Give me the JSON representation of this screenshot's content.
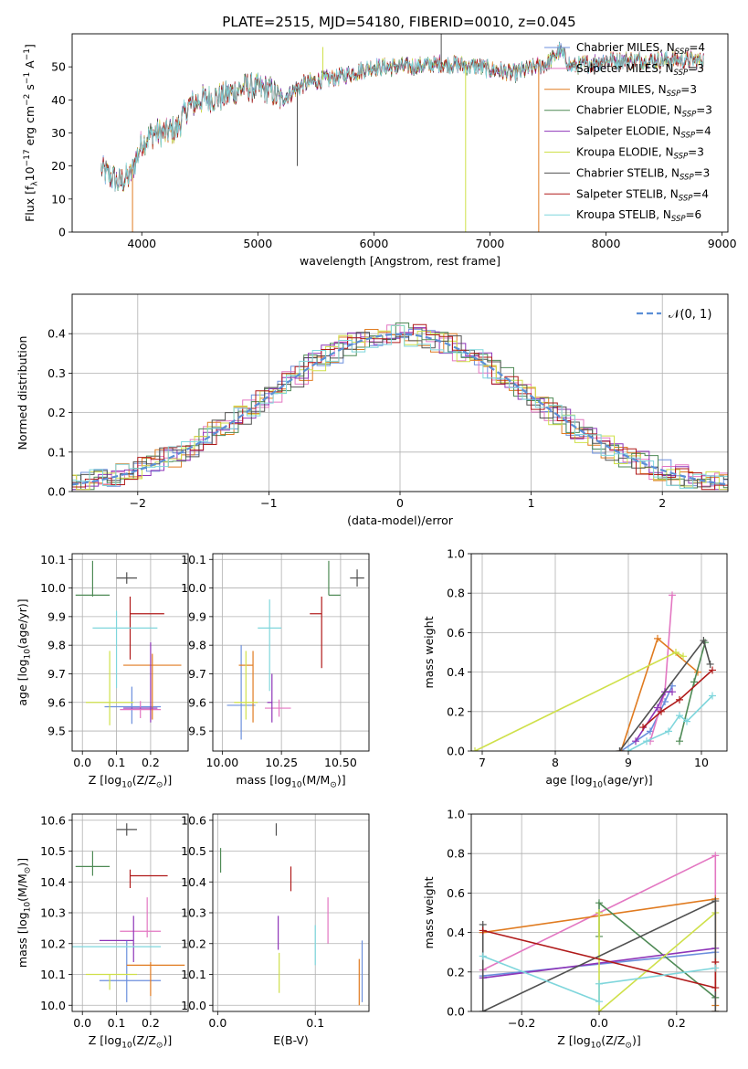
{
  "figure_title": "PLATE=2515, MJD=54180, FIBERID=0010, z=0.045",
  "colors": {
    "Chabrier MILES": "#6b8fdd",
    "Salpeter MILES": "#e377c2",
    "Kroupa MILES": "#e07b20",
    "Chabrier ELODIE": "#4e8a55",
    "Salpeter ELODIE": "#8e35b8",
    "Kroupa ELODIE": "#cfe04a",
    "Chabrier STELIB": "#505050",
    "Salpeter STELIB": "#b01a1a",
    "Kroupa STELIB": "#7fd6dc"
  },
  "chart_data": [
    {
      "id": "spectrum",
      "type": "line",
      "xlabel": "wavelength [Angstrom, rest frame]",
      "ylabel": "Flux [f_λ10^-17 erg cm^-2 s^-1 A^-1]",
      "xlim": [
        3400,
        9050
      ],
      "ylim": [
        0,
        60
      ],
      "xticks": [
        4000,
        5000,
        6000,
        7000,
        8000,
        9000
      ],
      "yticks": [
        0,
        10,
        20,
        30,
        40,
        50
      ],
      "x_range_data": [
        3650,
        8840
      ],
      "legend_position": "top-right",
      "legend": [
        {
          "label": "Chabrier MILES, N",
          "sub": "SSP",
          "suffix": "=4"
        },
        {
          "label": "Salpeter MILES, N",
          "sub": "SSP",
          "suffix": "=3"
        },
        {
          "label": "Kroupa MILES, N",
          "sub": "SSP",
          "suffix": "=3"
        },
        {
          "label": "Chabrier ELODIE, N",
          "sub": "SSP",
          "suffix": "=3"
        },
        {
          "label": "Salpeter ELODIE, N",
          "sub": "SSP",
          "suffix": "=4"
        },
        {
          "label": "Kroupa ELODIE, N",
          "sub": "SSP",
          "suffix": "=3"
        },
        {
          "label": "Chabrier STELIB, N",
          "sub": "SSP",
          "suffix": "=3"
        },
        {
          "label": "Salpeter STELIB, N",
          "sub": "SSP",
          "suffix": "=4"
        },
        {
          "label": "Kroupa STELIB, N",
          "sub": "SSP",
          "suffix": "=6"
        }
      ],
      "continuum_knots": [
        [
          3650,
          19
        ],
        [
          3800,
          15
        ],
        [
          3900,
          17
        ],
        [
          4000,
          27
        ],
        [
          4100,
          30
        ],
        [
          4200,
          30
        ],
        [
          4300,
          31
        ],
        [
          4400,
          38
        ],
        [
          4500,
          40
        ],
        [
          4700,
          41
        ],
        [
          4900,
          44
        ],
        [
          5100,
          43
        ],
        [
          5200,
          40
        ],
        [
          5400,
          45
        ],
        [
          5700,
          47
        ],
        [
          6000,
          50
        ],
        [
          6300,
          50
        ],
        [
          6600,
          51
        ],
        [
          6900,
          50
        ],
        [
          7200,
          48
        ],
        [
          7500,
          51
        ],
        [
          7600,
          55
        ],
        [
          7700,
          50
        ],
        [
          8000,
          52
        ],
        [
          8400,
          52
        ],
        [
          8840,
          52
        ]
      ],
      "spikes": [
        {
          "x": 3920,
          "y": 0
        },
        {
          "x": 5340,
          "y": 20
        },
        {
          "x": 5560,
          "y": 56
        },
        {
          "x": 6580,
          "y": 60
        },
        {
          "x": 6790,
          "y": 0
        },
        {
          "x": 7420,
          "y": 0
        }
      ]
    },
    {
      "id": "residuals",
      "type": "histogram",
      "xlabel": "(data-model)/error",
      "ylabel": "Normed distribution",
      "xlim": [
        -2.5,
        2.5
      ],
      "ylim": [
        0,
        0.5
      ],
      "xticks": [
        -2,
        -1,
        0,
        1,
        2
      ],
      "yticks": [
        0.0,
        0.1,
        0.2,
        0.3,
        0.4
      ],
      "bin_width": 0.1,
      "grid": true,
      "legend_position": "top-right",
      "legend": [
        {
          "label": "𝒩(0, 1)",
          "style": "dashed",
          "color": "#5b8fd6"
        }
      ]
    },
    {
      "id": "age_vs_Z",
      "type": "errorbar",
      "xlabel": "Z [log10(Z/Z⊙)]",
      "ylabel": "age [log10(age/yr)]",
      "xlim": [
        -0.03,
        0.31
      ],
      "ylim": [
        9.43,
        10.12
      ],
      "xticks": [
        0.0,
        0.1,
        0.2
      ],
      "yticks": [
        9.5,
        9.6,
        9.7,
        9.8,
        9.9,
        10.0,
        10.1
      ],
      "grid": true,
      "points": [
        {
          "model": "Chabrier MILES",
          "x": 0.145,
          "y": 9.585,
          "xerr": [
            0.08,
            0.085
          ],
          "yerr": [
            0.06,
            0.07
          ]
        },
        {
          "model": "Salpeter MILES",
          "x": 0.17,
          "y": 9.575,
          "xerr": [
            0.06,
            0.06
          ],
          "yerr": [
            0.03,
            0.03
          ]
        },
        {
          "model": "Kroupa MILES",
          "x": 0.205,
          "y": 9.73,
          "xerr": [
            0.085,
            0.085
          ],
          "yerr": [
            0.19,
            0.04
          ]
        },
        {
          "model": "Chabrier ELODIE",
          "x": 0.03,
          "y": 9.975,
          "xerr": [
            0.05,
            0.05
          ],
          "yerr": [
            0.005,
            0.12
          ]
        },
        {
          "model": "Salpeter ELODIE",
          "x": 0.2,
          "y": 9.58,
          "xerr": [
            0.08,
            0.02
          ],
          "yerr": [
            0.05,
            0.23
          ]
        },
        {
          "model": "Kroupa ELODIE",
          "x": 0.08,
          "y": 9.6,
          "xerr": [
            0.07,
            0.07
          ],
          "yerr": [
            0.08,
            0.18
          ]
        },
        {
          "model": "Chabrier STELIB",
          "x": 0.13,
          "y": 10.035,
          "xerr": [
            0.03,
            0.03
          ],
          "yerr": [
            0.02,
            0.02
          ]
        },
        {
          "model": "Salpeter STELIB",
          "x": 0.14,
          "y": 9.91,
          "xerr": [
            0.0,
            0.1
          ],
          "yerr": [
            0.16,
            0.06
          ]
        },
        {
          "model": "Kroupa STELIB",
          "x": 0.1,
          "y": 9.86,
          "xerr": [
            0.07,
            0.12
          ],
          "yerr": [
            0.21,
            0.06
          ]
        }
      ]
    },
    {
      "id": "age_vs_mass",
      "type": "errorbar",
      "xlabel": "mass [log10(M/M⊙)]",
      "ylabel": "",
      "xlim": [
        9.96,
        10.62
      ],
      "ylim": [
        9.43,
        10.12
      ],
      "xticks": [
        10.0,
        10.25,
        10.5
      ],
      "yticks": [
        9.5,
        9.6,
        9.7,
        9.8,
        9.9,
        10.0,
        10.1
      ],
      "grid": true,
      "points": [
        {
          "model": "Chabrier MILES",
          "x": 10.08,
          "y": 9.59,
          "xerr": [
            0.06,
            0.06
          ],
          "yerr": [
            0.12,
            0.21
          ]
        },
        {
          "model": "Salpeter MILES",
          "x": 10.24,
          "y": 9.58,
          "xerr": [
            0.06,
            0.05
          ],
          "yerr": [
            0.03,
            0.03
          ]
        },
        {
          "model": "Kroupa MILES",
          "x": 10.13,
          "y": 9.73,
          "xerr": [
            0.06,
            0.0
          ],
          "yerr": [
            0.2,
            0.05
          ]
        },
        {
          "model": "Chabrier ELODIE",
          "x": 10.45,
          "y": 9.975,
          "xerr": [
            0.0,
            0.05
          ],
          "yerr": [
            0.0,
            0.12
          ]
        },
        {
          "model": "Salpeter ELODIE",
          "x": 10.21,
          "y": 9.6,
          "xerr": [
            0.02,
            0.0
          ],
          "yerr": [
            0.07,
            0.1
          ]
        },
        {
          "model": "Kroupa ELODIE",
          "x": 10.1,
          "y": 9.6,
          "xerr": [
            0.05,
            0.05
          ],
          "yerr": [
            0.06,
            0.18
          ]
        },
        {
          "model": "Chabrier STELIB",
          "x": 10.57,
          "y": 10.035,
          "xerr": [
            0.03,
            0.03
          ],
          "yerr": [
            0.03,
            0.03
          ]
        },
        {
          "model": "Salpeter STELIB",
          "x": 10.42,
          "y": 9.91,
          "xerr": [
            0.05,
            0.0
          ],
          "yerr": [
            0.19,
            0.06
          ]
        },
        {
          "model": "Kroupa STELIB",
          "x": 10.2,
          "y": 9.86,
          "xerr": [
            0.05,
            0.05
          ],
          "yerr": [
            0.22,
            0.1
          ]
        }
      ]
    },
    {
      "id": "massweight_vs_age",
      "type": "line",
      "xlabel": "age [log10(age/yr)]",
      "ylabel": "mass weight",
      "xlim": [
        6.85,
        10.35
      ],
      "ylim": [
        0,
        1
      ],
      "xticks": [
        7,
        8,
        9,
        10
      ],
      "yticks": [
        0.0,
        0.2,
        0.4,
        0.6,
        0.8,
        1.0
      ],
      "grid": true,
      "series": [
        {
          "model": "Chabrier MILES",
          "x": [
            8.9,
            9.3,
            9.5,
            9.6
          ],
          "y": [
            0.0,
            0.1,
            0.25,
            0.33
          ]
        },
        {
          "model": "Salpeter MILES",
          "x": [
            9.3,
            9.5,
            9.6
          ],
          "y": [
            0.05,
            0.3,
            0.79
          ]
        },
        {
          "model": "Kroupa MILES",
          "x": [
            8.9,
            9.4,
            9.95
          ],
          "y": [
            0.0,
            0.57,
            0.4
          ]
        },
        {
          "model": "Chabrier ELODIE",
          "x": [
            9.7,
            9.9,
            10.05
          ],
          "y": [
            0.05,
            0.35,
            0.55
          ]
        },
        {
          "model": "Salpeter ELODIE",
          "x": [
            9.1,
            9.4,
            9.5,
            9.6
          ],
          "y": [
            0.05,
            0.22,
            0.3,
            0.3
          ]
        },
        {
          "model": "Kroupa ELODIE",
          "x": [
            6.9,
            9.65,
            9.75
          ],
          "y": [
            0.0,
            0.5,
            0.48
          ]
        },
        {
          "model": "Chabrier STELIB",
          "x": [
            8.88,
            10.03,
            10.12
          ],
          "y": [
            0.0,
            0.56,
            0.44
          ]
        },
        {
          "model": "Salpeter STELIB",
          "x": [
            9.2,
            9.45,
            9.7,
            10.15
          ],
          "y": [
            0.12,
            0.2,
            0.26,
            0.41
          ]
        },
        {
          "model": "Kroupa STELIB",
          "x": [
            9.0,
            9.25,
            9.55,
            9.7,
            9.8,
            10.15
          ],
          "y": [
            0.0,
            0.05,
            0.1,
            0.18,
            0.15,
            0.28
          ]
        }
      ]
    },
    {
      "id": "mass_vs_Z",
      "type": "errorbar",
      "xlabel": "Z [log10(Z/Z⊙)]",
      "ylabel": "mass [log10(M/M⊙)]",
      "xlim": [
        -0.03,
        0.31
      ],
      "ylim": [
        9.98,
        10.62
      ],
      "xticks": [
        0.0,
        0.1,
        0.2
      ],
      "yticks": [
        10.0,
        10.1,
        10.2,
        10.3,
        10.4,
        10.5,
        10.6
      ],
      "grid": true,
      "points": [
        {
          "model": "Chabrier MILES",
          "x": 0.13,
          "y": 10.08,
          "xerr": [
            0.08,
            0.1
          ],
          "yerr": [
            0.07,
            0.13
          ]
        },
        {
          "model": "Salpeter MILES",
          "x": 0.19,
          "y": 10.24,
          "xerr": [
            0.08,
            0.04
          ],
          "yerr": [
            0.02,
            0.11
          ]
        },
        {
          "model": "Kroupa MILES",
          "x": 0.2,
          "y": 10.13,
          "xerr": [
            0.07,
            0.1
          ],
          "yerr": [
            0.1,
            0.01
          ]
        },
        {
          "model": "Chabrier ELODIE",
          "x": 0.03,
          "y": 10.45,
          "xerr": [
            0.05,
            0.05
          ],
          "yerr": [
            0.03,
            0.05
          ]
        },
        {
          "model": "Salpeter ELODIE",
          "x": 0.15,
          "y": 10.21,
          "xerr": [
            0.1,
            0.0
          ],
          "yerr": [
            0.07,
            0.08
          ]
        },
        {
          "model": "Kroupa ELODIE",
          "x": 0.08,
          "y": 10.1,
          "xerr": [
            0.07,
            0.08
          ],
          "yerr": [
            0.05,
            0.0
          ]
        },
        {
          "model": "Chabrier STELIB",
          "x": 0.13,
          "y": 10.57,
          "xerr": [
            0.03,
            0.03
          ],
          "yerr": [
            0.02,
            0.02
          ]
        },
        {
          "model": "Salpeter STELIB",
          "x": 0.14,
          "y": 10.42,
          "xerr": [
            0.0,
            0.11
          ],
          "yerr": [
            0.04,
            0.02
          ]
        },
        {
          "model": "Kroupa STELIB",
          "x": 0.1,
          "y": 10.19,
          "xerr": [
            0.13,
            0.13
          ],
          "yerr": [
            0.0,
            0.0
          ]
        }
      ]
    },
    {
      "id": "mass_vs_ebv",
      "type": "errorbar",
      "xlabel": "E(B-V)",
      "ylabel": "",
      "xlim": [
        -0.005,
        0.155
      ],
      "ylim": [
        9.98,
        10.62
      ],
      "xticks": [
        0.0,
        0.1
      ],
      "yticks": [
        10.0,
        10.1,
        10.2,
        10.3,
        10.4,
        10.5,
        10.6
      ],
      "grid": true,
      "points": [
        {
          "model": "Chabrier MILES",
          "x": 0.148,
          "y": 10.14,
          "xerr": [
            0,
            0
          ],
          "yerr": [
            0.13,
            0.07
          ]
        },
        {
          "model": "Salpeter MILES",
          "x": 0.113,
          "y": 10.24,
          "xerr": [
            0,
            0
          ],
          "yerr": [
            0.04,
            0.11
          ]
        },
        {
          "model": "Kroupa MILES",
          "x": 0.145,
          "y": 10.09,
          "xerr": [
            0,
            0
          ],
          "yerr": [
            0.09,
            0.06
          ]
        },
        {
          "model": "Chabrier ELODIE",
          "x": 0.003,
          "y": 10.47,
          "xerr": [
            0,
            0
          ],
          "yerr": [
            0.04,
            0.04
          ]
        },
        {
          "model": "Salpeter ELODIE",
          "x": 0.062,
          "y": 10.23,
          "xerr": [
            0,
            0
          ],
          "yerr": [
            0.05,
            0.06
          ]
        },
        {
          "model": "Kroupa ELODIE",
          "x": 0.063,
          "y": 10.1,
          "xerr": [
            0,
            0
          ],
          "yerr": [
            0.06,
            0.07
          ]
        },
        {
          "model": "Chabrier STELIB",
          "x": 0.06,
          "y": 10.57,
          "xerr": [
            0,
            0
          ],
          "yerr": [
            0.02,
            0.02
          ]
        },
        {
          "model": "Salpeter STELIB",
          "x": 0.075,
          "y": 10.41,
          "xerr": [
            0,
            0
          ],
          "yerr": [
            0.04,
            0.04
          ]
        },
        {
          "model": "Kroupa STELIB",
          "x": 0.1,
          "y": 10.2,
          "xerr": [
            0,
            0
          ],
          "yerr": [
            0.07,
            0.06
          ]
        }
      ]
    },
    {
      "id": "massweight_vs_Z",
      "type": "line",
      "xlabel": "Z [log10(Z/Z⊙)]",
      "ylabel": "mass weight",
      "xlim": [
        -0.33,
        0.33
      ],
      "ylim": [
        0,
        1
      ],
      "xticks": [
        -0.2,
        0.0,
        0.2
      ],
      "yticks": [
        0.0,
        0.2,
        0.4,
        0.6,
        0.8,
        1.0
      ],
      "grid": true,
      "series": [
        {
          "model": "Chabrier MILES",
          "x": [
            -0.3,
            0.3
          ],
          "y": [
            0.18,
            0.3
          ]
        },
        {
          "model": "Salpeter MILES",
          "x": [
            -0.3,
            0.3,
            0.3
          ],
          "y": [
            0.21,
            0.79,
            0.0
          ]
        },
        {
          "model": "Kroupa MILES",
          "x": [
            -0.3,
            0.3,
            0.3
          ],
          "y": [
            0.4,
            0.57,
            0.03
          ]
        },
        {
          "model": "Chabrier ELODIE",
          "x": [
            0.3,
            0.0,
            0.0
          ],
          "y": [
            0.07,
            0.55,
            0.38
          ]
        },
        {
          "model": "Salpeter ELODIE",
          "x": [
            -0.3,
            0.3
          ],
          "y": [
            0.17,
            0.32
          ]
        },
        {
          "model": "Kroupa ELODIE",
          "x": [
            0.0,
            0.0,
            0.3,
            0.3
          ],
          "y": [
            0.5,
            0.0,
            0.5,
            0.0
          ]
        },
        {
          "model": "Chabrier STELIB",
          "x": [
            -0.3,
            -0.3,
            0.3,
            0.3
          ],
          "y": [
            0.44,
            0.0,
            0.56,
            0.0
          ]
        },
        {
          "model": "Salpeter STELIB",
          "x": [
            -0.3,
            0.3,
            0.3
          ],
          "y": [
            0.41,
            0.12,
            0.25
          ]
        },
        {
          "model": "Kroupa STELIB",
          "x": [
            -0.3,
            0.0,
            0.0,
            0.3
          ],
          "y": [
            0.28,
            0.05,
            0.14,
            0.22
          ]
        }
      ]
    }
  ]
}
